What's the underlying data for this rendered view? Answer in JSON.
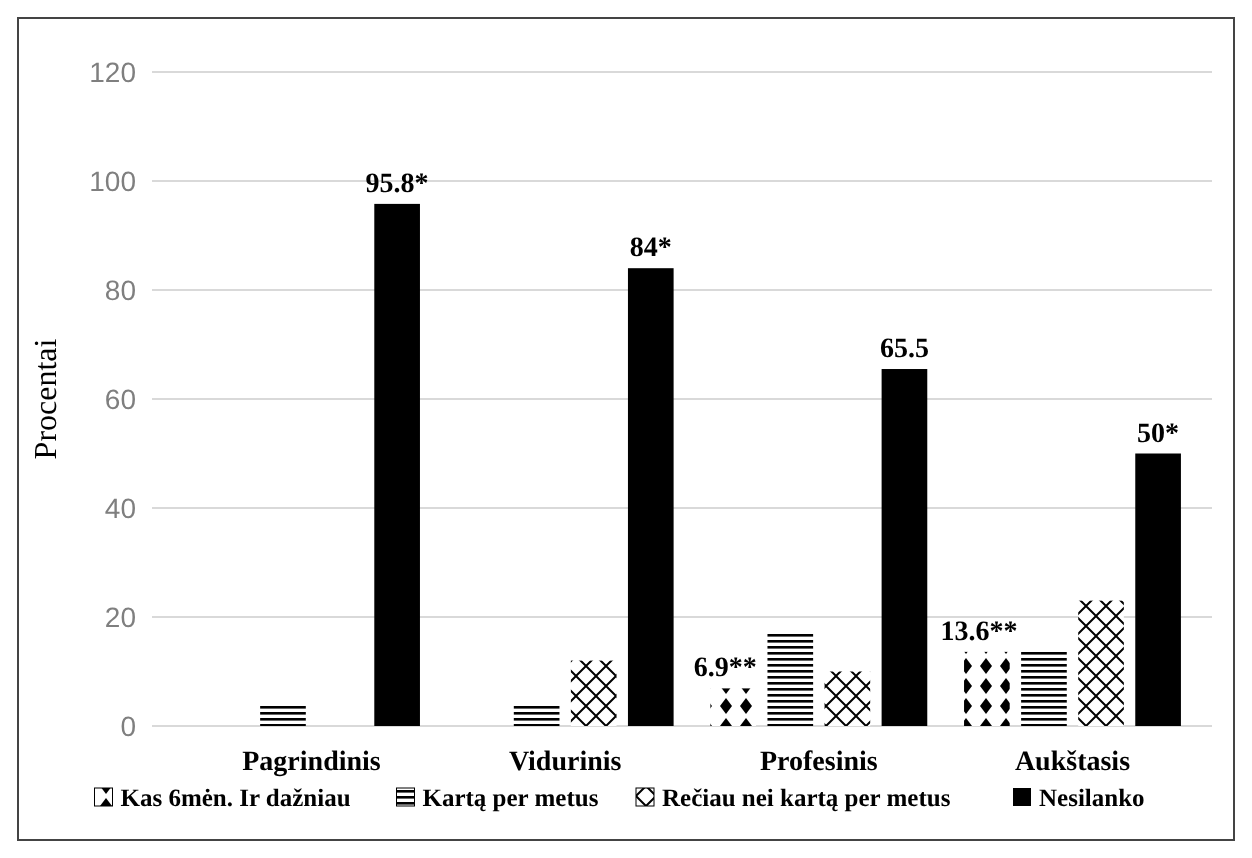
{
  "chart_data": {
    "type": "bar",
    "ylabel": "Procentai",
    "categories": [
      "Pagrindinis",
      "Vidurinis",
      "Profesinis",
      "Aukštasis"
    ],
    "series": [
      {
        "name": "Kas 6mėn. Ir dažniau",
        "color": "#000000",
        "values": [
          null,
          null,
          6.9,
          13.6
        ],
        "value_labels": [
          null,
          null,
          "6.9**",
          "13.6**"
        ]
      },
      {
        "name": "Kartą per metus",
        "color": "#000000",
        "values": [
          4,
          4,
          17,
          14
        ]
      },
      {
        "name": "Rečiau nei kartą per metus",
        "color": "#000000",
        "values": [
          null,
          12,
          10,
          23
        ]
      },
      {
        "name": "Nesilanko",
        "color": "#000000",
        "values": [
          95.8,
          84,
          65.5,
          50
        ],
        "value_labels": [
          "95.8*",
          "84*",
          "65.5",
          "50*"
        ]
      }
    ],
    "ylim": [
      0,
      120
    ],
    "yticks": [
      0,
      20,
      40,
      60,
      80,
      100,
      120
    ],
    "grid": "y",
    "legend": "bottom"
  }
}
